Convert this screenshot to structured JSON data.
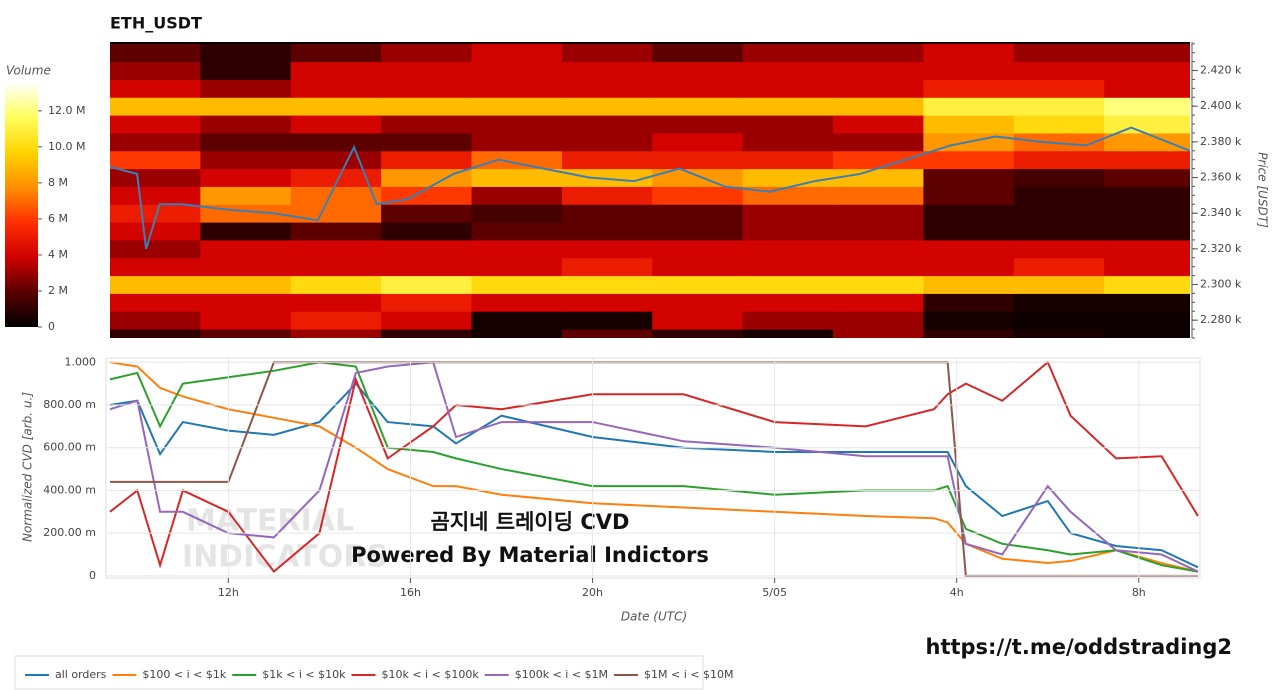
{
  "chart_data": [
    {
      "type": "heatmap",
      "title": "ETH_USDT",
      "x_bins": [
        9.4,
        11.4,
        13.4,
        15.4,
        17.4,
        19.4,
        21.4,
        23.4,
        25.4,
        27.4,
        29.4,
        31.4,
        33.4
      ],
      "y_bins": [
        2265,
        2275,
        2285,
        2295,
        2305,
        2315,
        2325,
        2335,
        2345,
        2355,
        2365,
        2375,
        2385,
        2395,
        2405,
        2415,
        2425,
        2435
      ],
      "values": [
        [
          1,
          2,
          3,
          1,
          0.5,
          2,
          1,
          0.5,
          3,
          1,
          0.5,
          0.3
        ],
        [
          3,
          4,
          5,
          4,
          0.5,
          0.5,
          4,
          3,
          3,
          0.5,
          0.3,
          0.3
        ],
        [
          4,
          4,
          4,
          5,
          4,
          4,
          4,
          4,
          4,
          1,
          0.5,
          0.5
        ],
        [
          9,
          9,
          10,
          11,
          10,
          10,
          10,
          10,
          10,
          9,
          9,
          10
        ],
        [
          4,
          4,
          4,
          4,
          4,
          5,
          4,
          4,
          4,
          4,
          5,
          4
        ],
        [
          3,
          4,
          4,
          4,
          4,
          4,
          4,
          4,
          4,
          4,
          4,
          4
        ],
        [
          4,
          1,
          2,
          1,
          2,
          2,
          2,
          3,
          3,
          1,
          1,
          1
        ],
        [
          5,
          7,
          7,
          2,
          1.5,
          2,
          2,
          3,
          3,
          1,
          1,
          1
        ],
        [
          4,
          8,
          7,
          6,
          3,
          5,
          6,
          7,
          7,
          2,
          1,
          1
        ],
        [
          3,
          4,
          5,
          8,
          9,
          9,
          8,
          9,
          9,
          2,
          1.5,
          2
        ],
        [
          6,
          3,
          3,
          5,
          7,
          5,
          5,
          5,
          6,
          6,
          5,
          5
        ],
        [
          3,
          2,
          2,
          2,
          3,
          3,
          4,
          3,
          3,
          8,
          7,
          8
        ],
        [
          4,
          3,
          4,
          3,
          3,
          3,
          3,
          3,
          4,
          9,
          10,
          11
        ],
        [
          9,
          9,
          9,
          9,
          9,
          9,
          9,
          9,
          9,
          11,
          11,
          12
        ],
        [
          4,
          3,
          4,
          4,
          4,
          4,
          4,
          4,
          4,
          5,
          5,
          4
        ],
        [
          3,
          1,
          4,
          4,
          4,
          4,
          4,
          4,
          4,
          4,
          4,
          4
        ],
        [
          2,
          1,
          2,
          3,
          4,
          3,
          2,
          3,
          3,
          4,
          3,
          3
        ]
      ],
      "colors": [
        "#000000",
        "#5a0000",
        "#d00000",
        "#ff3000",
        "#ff9000",
        "#ffd400",
        "#ffff60",
        "#ffffff"
      ],
      "colorbar": {
        "title": "Volume",
        "lim": [
          0,
          13.6
        ],
        "ticks": [
          0,
          {
            "value": 2,
            "label": "2 M"
          },
          {
            "value": 4,
            "label": "4 M"
          },
          {
            "value": 6,
            "label": "6 M"
          },
          {
            "value": 8,
            "label": "8 M"
          },
          {
            "value": 10,
            "label": "10.0 M"
          },
          {
            "value": 12,
            "label": "12.0 M"
          }
        ]
      },
      "line": {
        "color": "#3a7fb8",
        "x": [
          9.4,
          10,
          10.2,
          10.5,
          11,
          12,
          13,
          14,
          14.8,
          15.3,
          16,
          16.5,
          17,
          18,
          19,
          20,
          21,
          22,
          23,
          24,
          25,
          26,
          27,
          28,
          29,
          30,
          31,
          32,
          33.3
        ],
        "values": [
          2366,
          2362,
          2320,
          2345,
          2345,
          2342,
          2340,
          2336,
          2377,
          2345,
          2348,
          2355,
          2362,
          2370,
          2365,
          2360,
          2358,
          2365,
          2355,
          2352,
          2358,
          2362,
          2370,
          2378,
          2383,
          2380,
          2378,
          2388,
          2375
        ]
      },
      "xlim": [
        9.4,
        33.3
      ],
      "ylim": [
        2270,
        2436
      ],
      "ylabel": "Price [USDT]",
      "yticks": [
        {
          "value": 2280,
          "label": "2.280 k"
        },
        {
          "value": 2300,
          "label": "2.300 k"
        },
        {
          "value": 2320,
          "label": "2.320 k"
        },
        {
          "value": 2340,
          "label": "2.340 k"
        },
        {
          "value": 2360,
          "label": "2.360 k"
        },
        {
          "value": 2380,
          "label": "2.380 k"
        },
        {
          "value": 2400,
          "label": "2.400 k"
        },
        {
          "value": 2420,
          "label": "2.420 k"
        }
      ]
    },
    {
      "type": "line",
      "xlabel": "Date (UTC)",
      "ylabel": "Normalized CVD [arb. u.]",
      "grid": true,
      "x": [
        9.4,
        10,
        10.5,
        11,
        12,
        13,
        14,
        14.8,
        15.5,
        16.5,
        17,
        18,
        20,
        22,
        24,
        26,
        27.5,
        27.8,
        28.2,
        29,
        30,
        30.5,
        31.5,
        32.5,
        33.3
      ],
      "xlim": [
        9.4,
        33.3
      ],
      "ylim": [
        -0.01,
        1.02
      ],
      "xticks": [
        {
          "value": 12,
          "label": "12h"
        },
        {
          "value": 16,
          "label": "16h"
        },
        {
          "value": 20,
          "label": "20h"
        },
        {
          "value": 24,
          "label": "5/05"
        },
        {
          "value": 28,
          "label": "4h"
        },
        {
          "value": 32,
          "label": "8h"
        }
      ],
      "yticks": [
        0,
        {
          "value": 0.2,
          "label": "200.00 m"
        },
        {
          "value": 0.4,
          "label": "400.00 m"
        },
        {
          "value": 0.6,
          "label": "600.00 m"
        },
        {
          "value": 0.8,
          "label": "800.00 m"
        },
        {
          "value": 1,
          "label": "1.000"
        }
      ],
      "series": [
        {
          "name": "all orders",
          "color": "#1f77b4",
          "values": [
            0.8,
            0.82,
            0.57,
            0.72,
            0.68,
            0.66,
            0.72,
            0.9,
            0.72,
            0.7,
            0.62,
            0.75,
            0.65,
            0.6,
            0.58,
            0.58,
            0.58,
            0.58,
            0.42,
            0.28,
            0.35,
            0.2,
            0.14,
            0.12,
            0.04
          ]
        },
        {
          "name": "$100 < i < $1k",
          "color": "#ff7f0e",
          "values": [
            1,
            0.98,
            0.88,
            0.84,
            0.78,
            0.74,
            0.7,
            0.6,
            0.5,
            0.42,
            0.42,
            0.38,
            0.34,
            0.32,
            0.3,
            0.28,
            0.27,
            0.25,
            0.15,
            0.08,
            0.06,
            0.07,
            0.12,
            0.06,
            0.02
          ]
        },
        {
          "name": "$1k < i < $10k",
          "color": "#2ca02c",
          "values": [
            0.92,
            0.95,
            0.7,
            0.9,
            0.93,
            0.96,
            1,
            0.98,
            0.6,
            0.58,
            0.55,
            0.5,
            0.42,
            0.42,
            0.38,
            0.4,
            0.4,
            0.42,
            0.22,
            0.15,
            0.12,
            0.1,
            0.12,
            0.05,
            0.02
          ]
        },
        {
          "name": "$10k < i < $100k",
          "color": "#d62728",
          "values": [
            0.3,
            0.4,
            0.05,
            0.4,
            0.3,
            0.02,
            0.2,
            0.92,
            0.55,
            0.7,
            0.8,
            0.78,
            0.85,
            0.85,
            0.72,
            0.7,
            0.78,
            0.85,
            0.9,
            0.82,
            1,
            0.75,
            0.55,
            0.56,
            0.28
          ]
        },
        {
          "name": "$100k < i < $1M",
          "color": "#9467bd",
          "values": [
            0.78,
            0.82,
            0.3,
            0.3,
            0.2,
            0.18,
            0.4,
            0.95,
            0.98,
            1,
            0.65,
            0.72,
            0.72,
            0.63,
            0.6,
            0.56,
            0.56,
            0.56,
            0.15,
            0.1,
            0.42,
            0.3,
            0.12,
            0.1,
            0.02
          ]
        },
        {
          "name": "$1M < i < $10M",
          "color": "#8c564b",
          "values": [
            0.44,
            0.44,
            0.44,
            0.44,
            0.44,
            1,
            1,
            1,
            1,
            1,
            1,
            1,
            1,
            1,
            1,
            1,
            1,
            1,
            0,
            0,
            0,
            0,
            0,
            0,
            0
          ]
        }
      ],
      "annotations": [
        "곰지네 트레이딩 CVD",
        "Powered By Material Indictors"
      ],
      "watermark": [
        "MATERIAL",
        "INDICATORS"
      ]
    }
  ],
  "link": "https://t.me/oddstrading2"
}
